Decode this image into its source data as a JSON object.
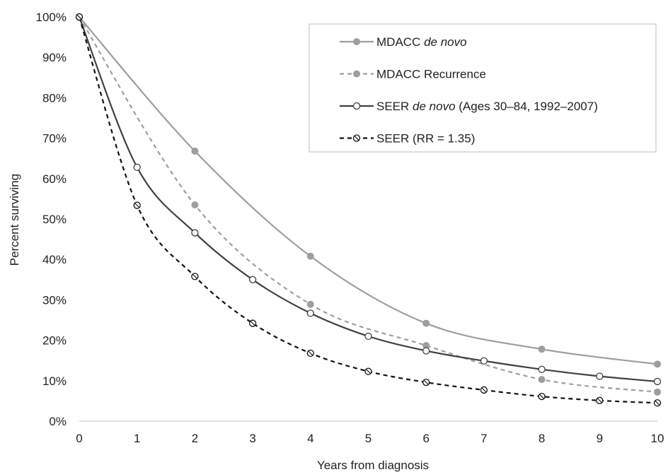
{
  "chart_data": {
    "type": "line",
    "xlabel": "Years from diagnosis",
    "ylabel": "Percent surviving",
    "xlim": [
      0,
      10
    ],
    "ylim": [
      0,
      100
    ],
    "x_ticks": [
      "0",
      "1",
      "2",
      "3",
      "4",
      "5",
      "6",
      "7",
      "8",
      "9",
      "10"
    ],
    "y_ticks": [
      "0%",
      "10%",
      "20%",
      "30%",
      "40%",
      "50%",
      "60%",
      "70%",
      "80%",
      "90%",
      "100%"
    ],
    "grid": false,
    "legend_position": "top-right",
    "series": [
      {
        "name": "MDACC de novo",
        "legend": {
          "prefix": "MDACC ",
          "italic": "de novo",
          "suffix": ""
        },
        "color": "#9e9e9e",
        "dash": "solid",
        "marker": "filled",
        "x": [
          0,
          2,
          4,
          6,
          8,
          10
        ],
        "y": [
          100,
          66.8,
          40.8,
          24.2,
          17.8,
          14.1
        ]
      },
      {
        "name": "MDACC Recurrence",
        "legend": {
          "prefix": "MDACC Recurrence",
          "italic": "",
          "suffix": ""
        },
        "color": "#9e9e9e",
        "dash": "dashed",
        "marker": "filled",
        "x": [
          0,
          2,
          4,
          6,
          8,
          10
        ],
        "y": [
          100,
          53.5,
          28.9,
          18.7,
          10.3,
          7.2
        ]
      },
      {
        "name": "SEER de novo (Ages 30–84, 1992–2007)",
        "legend": {
          "prefix": "SEER ",
          "italic": "de novo",
          "suffix": " (Ages 30–84, 1992–2007)"
        },
        "color": "#404040",
        "dash": "solid",
        "marker": "open",
        "x": [
          0,
          1,
          2,
          3,
          4,
          5,
          6,
          7,
          8,
          9,
          10
        ],
        "y": [
          100,
          62.8,
          46.6,
          35.0,
          26.7,
          21.0,
          17.4,
          14.9,
          12.8,
          11.1,
          9.8
        ]
      },
      {
        "name": "SEER (RR = 1.35)",
        "legend": {
          "prefix": "SEER (RR = 1.35)",
          "italic": "",
          "suffix": ""
        },
        "color": "#111111",
        "dash": "dashed",
        "marker": "open-slash",
        "x": [
          0,
          1,
          2,
          3,
          4,
          5,
          6,
          7,
          8,
          9,
          10
        ],
        "y": [
          100,
          53.4,
          35.8,
          24.2,
          16.8,
          12.3,
          9.6,
          7.7,
          6.1,
          5.1,
          4.5
        ]
      }
    ]
  }
}
